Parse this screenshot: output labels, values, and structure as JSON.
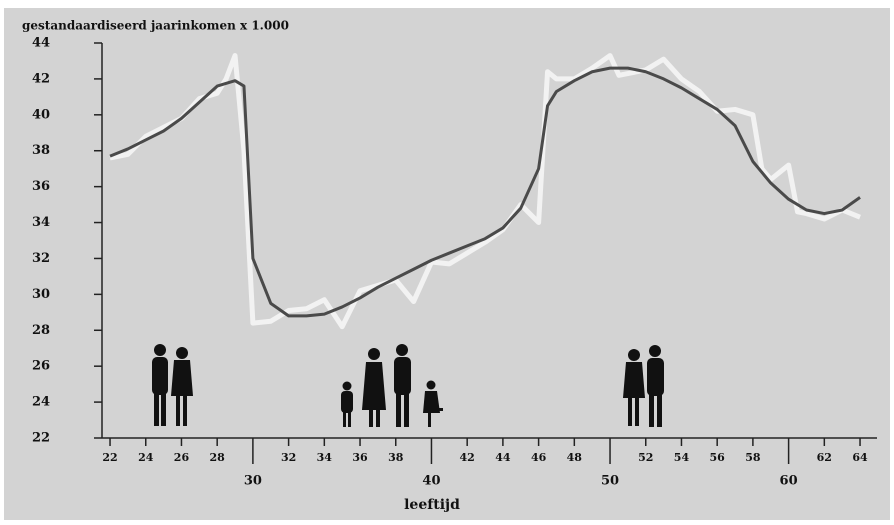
{
  "chart_data": {
    "type": "line",
    "ylabel": "gestandaardiseerd jaarinkomen x 1.000",
    "xlabel": "leeftijd",
    "xlim": [
      21.55,
      64.95
    ],
    "ylim": [
      22,
      44
    ],
    "xticks": [
      22,
      24,
      26,
      28,
      30,
      32,
      34,
      36,
      38,
      40,
      42,
      44,
      46,
      48,
      50,
      52,
      54,
      56,
      58,
      60,
      62,
      64
    ],
    "yticks": [
      22,
      24,
      26,
      28,
      30,
      32,
      34,
      36,
      38,
      40,
      42,
      44
    ],
    "series": [
      {
        "color": "#f2f2f2",
        "x": [
          22,
          23,
          24,
          25,
          26,
          27,
          28,
          28.5,
          29,
          29.5,
          30,
          31,
          32,
          33,
          34,
          35,
          36,
          37,
          38,
          39,
          40,
          41,
          42,
          43,
          44,
          45,
          46,
          46.5,
          47,
          48,
          49,
          50,
          50.5,
          51,
          52,
          53,
          54,
          55,
          56,
          57,
          58,
          58.5,
          59,
          60,
          60.5,
          61,
          62,
          63,
          64
        ],
        "values": [
          37.6,
          37.8,
          38.8,
          39.3,
          39.8,
          40.9,
          41.2,
          42,
          43.3,
          38,
          28.4,
          28.5,
          29.1,
          29.2,
          29.7,
          28.2,
          30.2,
          30.5,
          30.8,
          29.6,
          31.8,
          31.7,
          32.3,
          32.9,
          33.6,
          35,
          34,
          42.4,
          42,
          42,
          42.6,
          43.3,
          42.2,
          42.3,
          42.5,
          43.1,
          42,
          41.3,
          40.2,
          40.3,
          40,
          37,
          36.4,
          37.2,
          34.6,
          34.5,
          34.2,
          34.7,
          34.3
        ]
      },
      {
        "color": "#4a4a4a",
        "x": [
          22,
          23,
          24,
          25,
          26,
          27,
          28,
          29,
          29.5,
          30,
          31,
          32,
          33,
          34,
          35,
          36,
          37,
          38,
          39,
          40,
          41,
          42,
          43,
          44,
          45,
          46,
          46.5,
          47,
          48,
          49,
          50,
          51,
          52,
          53,
          54,
          55,
          56,
          57,
          58,
          59,
          60,
          61,
          62,
          63,
          64
        ],
        "values": [
          37.7,
          38.1,
          38.6,
          39.1,
          39.8,
          40.7,
          41.6,
          41.9,
          41.6,
          32,
          29.5,
          28.8,
          28.8,
          28.9,
          29.3,
          29.8,
          30.4,
          30.9,
          31.4,
          31.9,
          32.3,
          32.7,
          33.1,
          33.7,
          34.8,
          37,
          40.5,
          41.3,
          41.9,
          42.4,
          42.6,
          42.6,
          42.4,
          42,
          41.5,
          40.9,
          40.3,
          39.4,
          37.4,
          36.2,
          35.3,
          34.7,
          34.5,
          34.7,
          35.4
        ]
      }
    ]
  }
}
